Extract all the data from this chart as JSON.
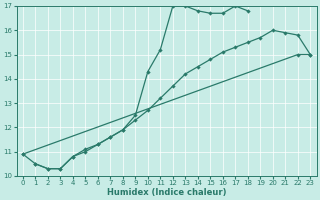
{
  "xlabel": "Humidex (Indice chaleur)",
  "xlim": [
    -0.5,
    23.5
  ],
  "ylim": [
    10,
    17
  ],
  "yticks": [
    10,
    11,
    12,
    13,
    14,
    15,
    16,
    17
  ],
  "xticks": [
    0,
    1,
    2,
    3,
    4,
    5,
    6,
    7,
    8,
    9,
    10,
    11,
    12,
    13,
    14,
    15,
    16,
    17,
    18,
    19,
    20,
    21,
    22,
    23
  ],
  "bg_color": "#c8ece6",
  "line_color": "#2a7a6a",
  "grid_color": "#ffffff",
  "line1": {
    "x": [
      0,
      1,
      2,
      3,
      4,
      5,
      6,
      7,
      8,
      9,
      10,
      11,
      12,
      13,
      14,
      15,
      16,
      17,
      18
    ],
    "y": [
      10.9,
      10.5,
      10.3,
      10.3,
      10.8,
      11.1,
      11.3,
      11.6,
      11.9,
      12.5,
      14.3,
      15.2,
      17.0,
      17.0,
      16.8,
      16.7,
      16.7,
      17.0,
      16.8
    ]
  },
  "line2": {
    "x": [
      0,
      22,
      23
    ],
    "y": [
      10.9,
      15.0,
      15.0
    ]
  },
  "line3": {
    "x": [
      1,
      2,
      3,
      4,
      5,
      6,
      7,
      8,
      9,
      10,
      11,
      12,
      13,
      14,
      15,
      16,
      17,
      18,
      19,
      20,
      21,
      22,
      23
    ],
    "y": [
      10.5,
      10.3,
      10.3,
      10.8,
      11.0,
      11.3,
      11.6,
      11.9,
      12.3,
      12.7,
      13.2,
      13.7,
      14.2,
      14.5,
      14.8,
      15.1,
      15.3,
      15.5,
      15.7,
      16.0,
      15.9,
      15.8,
      15.0
    ]
  }
}
